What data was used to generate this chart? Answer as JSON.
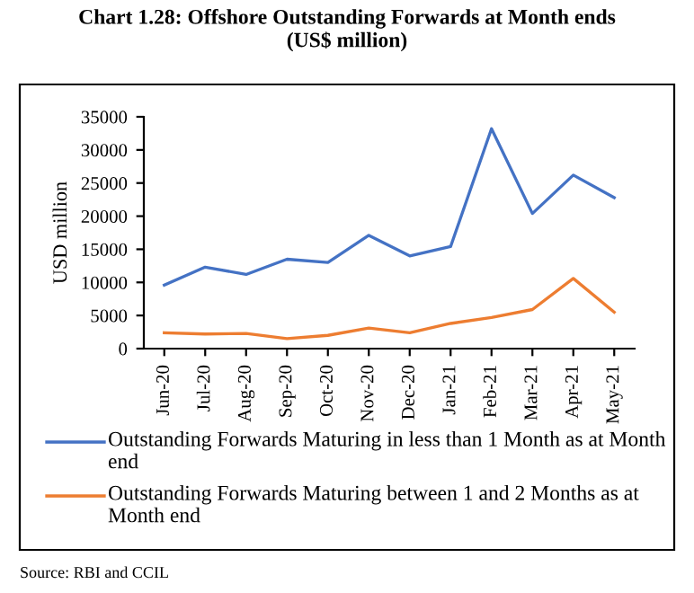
{
  "chart_data": {
    "type": "line",
    "title": "Chart 1.28: Offshore Outstanding Forwards at Month ends\n(US$ million)",
    "ylabel": "USD million",
    "categories": [
      "Jun-20",
      "Jul-20",
      "Aug-20",
      "Sep-20",
      "Oct-20",
      "Nov-20",
      "Dec-20",
      "Jan-21",
      "Feb-21",
      "Mar-21",
      "Apr-21",
      "May-21"
    ],
    "series": [
      {
        "name": "Outstanding Forwards Maturing in less than 1 Month as at Month end",
        "color": "#4472c4",
        "values": [
          9600,
          12300,
          11200,
          13500,
          13000,
          17100,
          14000,
          15400,
          33200,
          20400,
          26200,
          22800
        ]
      },
      {
        "name": "Outstanding Forwards Maturing between 1 and 2 Months as at Month end",
        "color": "#ed7d31",
        "values": [
          2400,
          2200,
          2300,
          1500,
          2000,
          3100,
          2400,
          3800,
          4700,
          5900,
          10600,
          5500
        ]
      }
    ],
    "ylim": [
      0,
      35000
    ],
    "yticks": [
      0,
      5000,
      10000,
      15000,
      20000,
      25000,
      30000,
      35000
    ],
    "grid": false,
    "legend": "bottom",
    "marker": "none",
    "line_style": "solid",
    "annotations": [
      "Source: RBI and CCIL"
    ]
  }
}
